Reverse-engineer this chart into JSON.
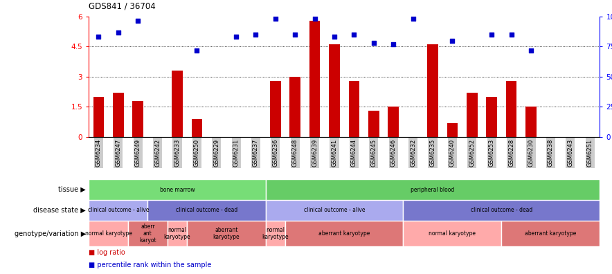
{
  "title": "GDS841 / 36704",
  "samples": [
    "GSM6234",
    "GSM6247",
    "GSM6249",
    "GSM6242",
    "GSM6233",
    "GSM6250",
    "GSM6229",
    "GSM6231",
    "GSM6237",
    "GSM6236",
    "GSM6248",
    "GSM6239",
    "GSM6241",
    "GSM6244",
    "GSM6245",
    "GSM6246",
    "GSM6232",
    "GSM6235",
    "GSM6240",
    "GSM6252",
    "GSM6253",
    "GSM6228",
    "GSM6230",
    "GSM6238",
    "GSM6243",
    "GSM6251"
  ],
  "log_ratio": [
    2.0,
    2.2,
    1.8,
    0.0,
    3.3,
    0.9,
    0.0,
    0.0,
    0.0,
    2.8,
    3.0,
    5.8,
    4.6,
    2.8,
    1.3,
    1.5,
    0.0,
    4.6,
    0.7,
    2.2,
    2.0,
    2.8,
    1.5,
    0.0,
    0.0,
    0.0
  ],
  "percentile_y": [
    5.0,
    5.2,
    5.8,
    null,
    null,
    4.3,
    null,
    5.0,
    5.1,
    5.9,
    5.1,
    5.9,
    5.0,
    5.1,
    4.7,
    4.6,
    5.9,
    null,
    4.8,
    null,
    5.1,
    5.1,
    4.3,
    null,
    null,
    null
  ],
  "bar_color": "#cc0000",
  "scatter_color": "#0000cc",
  "tissue_segments": [
    {
      "label": "bone marrow",
      "start": 0,
      "end": 9,
      "color": "#77dd77"
    },
    {
      "label": "peripheral blood",
      "start": 9,
      "end": 26,
      "color": "#66cc66"
    }
  ],
  "disease_segments": [
    {
      "label": "clinical outcome - alive",
      "start": 0,
      "end": 3,
      "color": "#aaaaee"
    },
    {
      "label": "clinical outcome - dead",
      "start": 3,
      "end": 9,
      "color": "#7777cc"
    },
    {
      "label": "clinical outcome - alive",
      "start": 9,
      "end": 16,
      "color": "#aaaaee"
    },
    {
      "label": "clinical outcome - dead",
      "start": 16,
      "end": 26,
      "color": "#7777cc"
    }
  ],
  "geno_segments": [
    {
      "label": "normal karyotype",
      "start": 0,
      "end": 2,
      "color": "#ffaaaa"
    },
    {
      "label": "aberr\nant\nkaryot",
      "start": 2,
      "end": 4,
      "color": "#dd7777"
    },
    {
      "label": "normal\nkaryotype",
      "start": 4,
      "end": 5,
      "color": "#ffaaaa"
    },
    {
      "label": "aberrant\nkaryotype",
      "start": 5,
      "end": 9,
      "color": "#dd7777"
    },
    {
      "label": "normal\nkaryotype",
      "start": 9,
      "end": 10,
      "color": "#ffaaaa"
    },
    {
      "label": "aberrant karyotype",
      "start": 10,
      "end": 16,
      "color": "#dd7777"
    },
    {
      "label": "normal karyotype",
      "start": 16,
      "end": 21,
      "color": "#ffaaaa"
    },
    {
      "label": "aberrant karyotype",
      "start": 21,
      "end": 26,
      "color": "#dd7777"
    }
  ]
}
